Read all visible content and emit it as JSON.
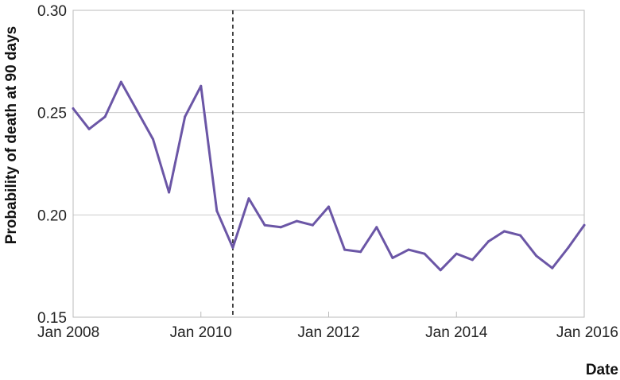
{
  "chart_data": {
    "type": "line",
    "title": "",
    "xlabel": "Date",
    "ylabel": "Probability of death at 90 days",
    "xlim": [
      "2008-01",
      "2016-01"
    ],
    "ylim": [
      0.15,
      0.3
    ],
    "x_ticks": [
      "Jan 2008",
      "Jan 2010",
      "Jan 2012",
      "Jan 2014",
      "Jan 2016"
    ],
    "y_ticks": [
      "0.15",
      "0.20",
      "0.25",
      "0.30"
    ],
    "grid": "horizontal",
    "annotations": [
      {
        "type": "vertical-dashed-line",
        "x": "2010-07"
      }
    ],
    "colors": {
      "line": "#6b56a6",
      "grid": "#cccccc",
      "frame": "#bbbbbb"
    },
    "series": [
      {
        "x": [
          "2008-01",
          "2008-04",
          "2008-07",
          "2008-10",
          "2009-01",
          "2009-04",
          "2009-07",
          "2009-10",
          "2010-01",
          "2010-04",
          "2010-07",
          "2010-10",
          "2011-01",
          "2011-04",
          "2011-07",
          "2011-10",
          "2012-01",
          "2012-04",
          "2012-07",
          "2012-10",
          "2013-01",
          "2013-04",
          "2013-07",
          "2013-10",
          "2014-01",
          "2014-04",
          "2014-07",
          "2014-10",
          "2015-01",
          "2015-04",
          "2015-07",
          "2015-10",
          "2016-01"
        ],
        "values": [
          0.252,
          0.242,
          0.248,
          0.265,
          0.251,
          0.237,
          0.211,
          0.248,
          0.263,
          0.202,
          0.184,
          0.208,
          0.195,
          0.194,
          0.197,
          0.195,
          0.204,
          0.183,
          0.182,
          0.194,
          0.179,
          0.183,
          0.181,
          0.173,
          0.181,
          0.178,
          0.187,
          0.192,
          0.19,
          0.18,
          0.174,
          0.184,
          0.195
        ]
      }
    ]
  }
}
